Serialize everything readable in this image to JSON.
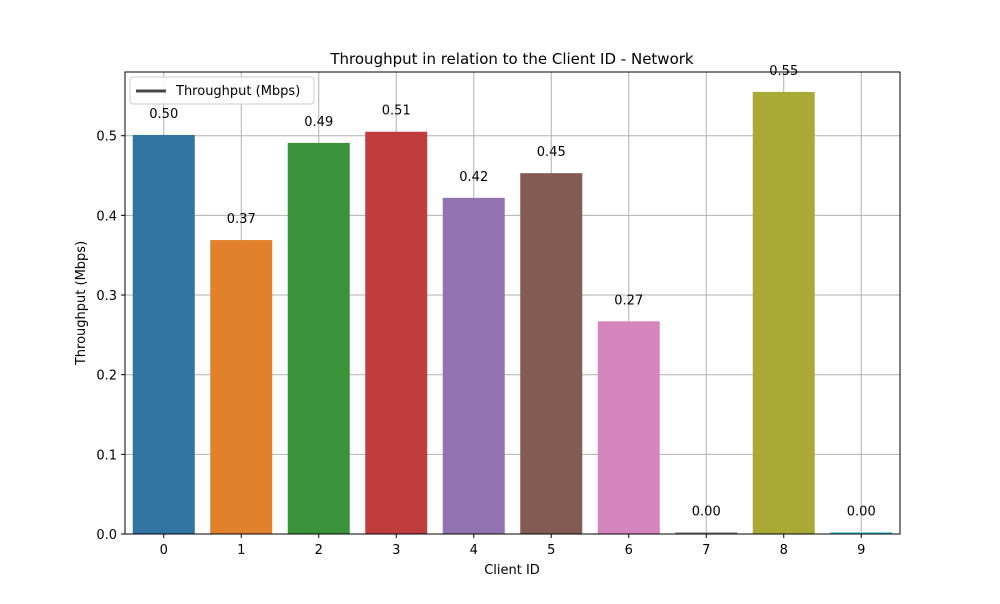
{
  "chart_data": {
    "type": "bar",
    "title": "Throughput in relation to the Client ID - Network",
    "xlabel": "Client ID",
    "ylabel": "Throughput (Mbps)",
    "categories": [
      "0",
      "1",
      "2",
      "3",
      "4",
      "5",
      "6",
      "7",
      "8",
      "9"
    ],
    "values": [
      0.501,
      0.369,
      0.491,
      0.505,
      0.422,
      0.453,
      0.267,
      0.002,
      0.555,
      0.002
    ],
    "data_labels": [
      "0.50",
      "0.37",
      "0.49",
      "0.51",
      "0.42",
      "0.45",
      "0.27",
      "0.00",
      "0.55",
      "0.00"
    ],
    "colors": [
      "#3274a1",
      "#e1812c",
      "#3a923a",
      "#c03d3e",
      "#9372b2",
      "#845b53",
      "#d684bd",
      "#7f7f7f",
      "#a9aa35",
      "#2fbcce"
    ],
    "ylim": [
      0,
      0.58
    ],
    "yticks": [
      0.0,
      0.1,
      0.2,
      0.3,
      0.4,
      0.5
    ],
    "ytick_labels": [
      "0.0",
      "0.1",
      "0.2",
      "0.3",
      "0.4",
      "0.5"
    ],
    "grid": true,
    "legend": {
      "position": "top-left",
      "entries": [
        {
          "label": "Throughput (Mbps)",
          "color": "#444444"
        }
      ]
    }
  }
}
